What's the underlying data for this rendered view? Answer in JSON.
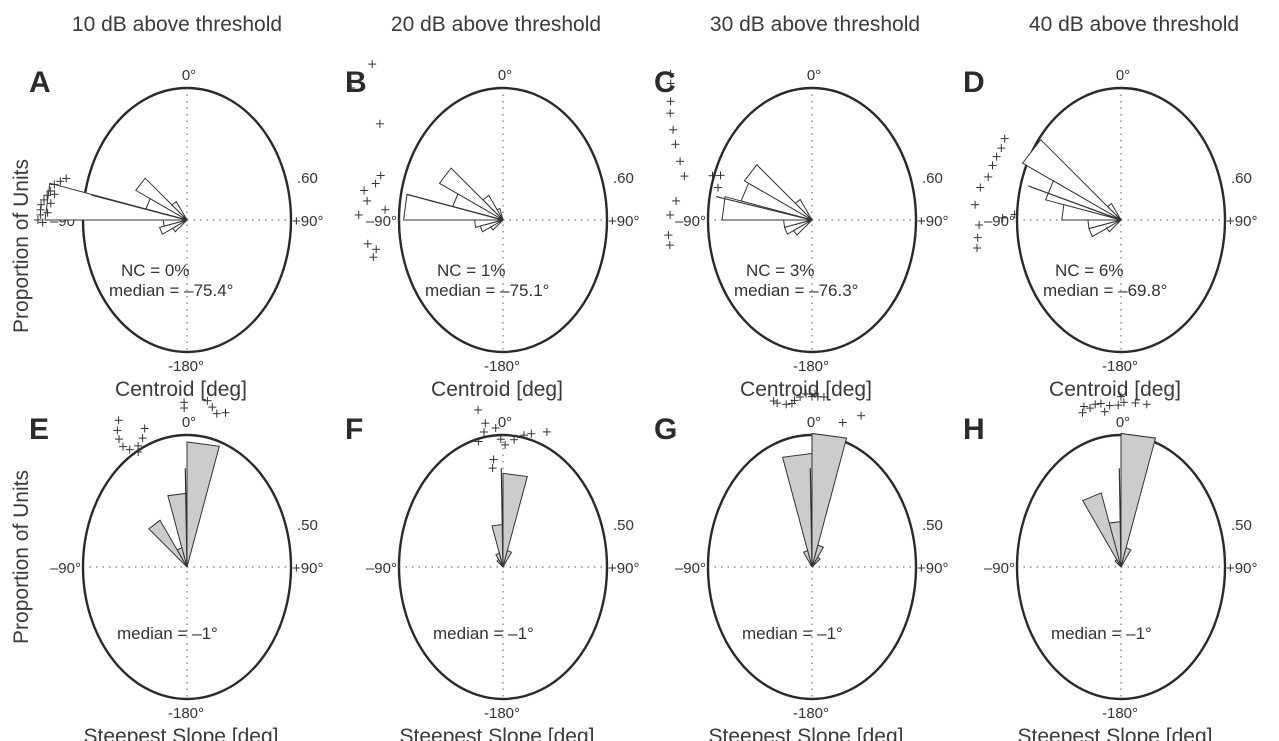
{
  "figure": {
    "column_titles": [
      "10 dB above threshold",
      "20 dB above threshold",
      "30 dB above threshold",
      "40 dB above threshold"
    ],
    "row_ylabel": "Proportion of Units",
    "angle_labels": {
      "top": "0°",
      "bottom": "-180°",
      "left": "–90°",
      "right": "+90°"
    }
  },
  "chart_data": [
    {
      "panel": "A",
      "type": "polar-histogram",
      "row": "centroid",
      "xlabel": "Centroid [deg]",
      "radius_max_label": ".60",
      "radius_max": 0.6,
      "nc_label": "NC = 0%",
      "median_label": "median = –75.4°",
      "median_deg": -75.4,
      "bin_width_deg": 15,
      "bar_fill": "#ffffff",
      "bins": [
        {
          "angle_deg": -37.5,
          "proportion": 0.09
        },
        {
          "angle_deg": -52.5,
          "proportion": 0.25
        },
        {
          "angle_deg": -67.5,
          "proportion": 0.18
        },
        {
          "angle_deg": -82.5,
          "proportion": 0.6
        },
        {
          "angle_deg": -97.5,
          "proportion": 0.1
        },
        {
          "angle_deg": -112.5,
          "proportion": 0.12
        },
        {
          "angle_deg": -127.5,
          "proportion": 0.07
        }
      ],
      "scatter": [
        {
          "angle_deg": -73,
          "proportion": 0.56
        },
        {
          "angle_deg": -71,
          "proportion": 0.54
        },
        {
          "angle_deg": -75,
          "proportion": 0.58
        },
        {
          "angle_deg": -78,
          "proportion": 0.59
        },
        {
          "angle_deg": -80,
          "proportion": 0.6
        },
        {
          "angle_deg": -82,
          "proportion": 0.61
        },
        {
          "angle_deg": -84,
          "proportion": 0.62
        },
        {
          "angle_deg": -86,
          "proportion": 0.62
        },
        {
          "angle_deg": -88,
          "proportion": 0.62
        },
        {
          "angle_deg": -90,
          "proportion": 0.63
        },
        {
          "angle_deg": -83,
          "proportion": 0.58
        },
        {
          "angle_deg": -87,
          "proportion": 0.59
        },
        {
          "angle_deg": -79,
          "proportion": 0.57
        },
        {
          "angle_deg": -91,
          "proportion": 0.61
        }
      ]
    },
    {
      "panel": "B",
      "type": "polar-histogram",
      "row": "centroid",
      "xlabel": "Centroid [deg]",
      "radius_max_label": ".60",
      "radius_max": 0.6,
      "nc_label": "NC = 1%",
      "median_label": "median = –75.1°",
      "median_deg": -75.1,
      "bin_width_deg": 15,
      "bar_fill": "#ffffff",
      "bins": [
        {
          "angle_deg": -22.5,
          "proportion": 0.05
        },
        {
          "angle_deg": -37.5,
          "proportion": 0.12
        },
        {
          "angle_deg": -52.5,
          "proportion": 0.31
        },
        {
          "angle_deg": -67.5,
          "proportion": 0.22
        },
        {
          "angle_deg": -82.5,
          "proportion": 0.42
        },
        {
          "angle_deg": -97.5,
          "proportion": 0.12
        },
        {
          "angle_deg": -112.5,
          "proportion": 0.1
        },
        {
          "angle_deg": -127.5,
          "proportion": 0.06
        }
      ],
      "scatter": [
        {
          "angle_deg": -52,
          "proportion": 0.66
        },
        {
          "angle_deg": -49,
          "proportion": 0.85
        },
        {
          "angle_deg": -40,
          "proportion": 0.86
        },
        {
          "angle_deg": -70,
          "proportion": 0.55
        },
        {
          "angle_deg": -74,
          "proportion": 0.56
        },
        {
          "angle_deg": -78,
          "proportion": 0.6
        },
        {
          "angle_deg": -82,
          "proportion": 0.58
        },
        {
          "angle_deg": -85,
          "proportion": 0.5
        },
        {
          "angle_deg": -88,
          "proportion": 0.61
        },
        {
          "angle_deg": -100,
          "proportion": 0.58
        },
        {
          "angle_deg": -103,
          "proportion": 0.55
        },
        {
          "angle_deg": -106,
          "proportion": 0.57
        }
      ]
    },
    {
      "panel": "C",
      "type": "polar-histogram",
      "row": "centroid",
      "xlabel": "Centroid [deg]",
      "radius_max_label": ".60",
      "radius_max": 0.6,
      "nc_label": "NC = 3%",
      "median_label": "median = –76.3°",
      "median_deg": -76.3,
      "bin_width_deg": 15,
      "bar_fill": "#ffffff",
      "bins": [
        {
          "angle_deg": -37.5,
          "proportion": 0.1
        },
        {
          "angle_deg": -52.5,
          "proportion": 0.33
        },
        {
          "angle_deg": -67.5,
          "proportion": 0.31
        },
        {
          "angle_deg": -82.5,
          "proportion": 0.38
        },
        {
          "angle_deg": -97.5,
          "proportion": 0.12
        },
        {
          "angle_deg": -112.5,
          "proportion": 0.12
        },
        {
          "angle_deg": -127.5,
          "proportion": 0.09
        }
      ],
      "scatter": [
        {
          "angle_deg": -44,
          "proportion": 0.86
        },
        {
          "angle_deg": -46,
          "proportion": 0.83
        },
        {
          "angle_deg": -50,
          "proportion": 0.78
        },
        {
          "angle_deg": -53,
          "proportion": 0.75
        },
        {
          "angle_deg": -57,
          "proportion": 0.7
        },
        {
          "angle_deg": -61,
          "proportion": 0.66
        },
        {
          "angle_deg": -66,
          "proportion": 0.61
        },
        {
          "angle_deg": -71,
          "proportion": 0.57
        },
        {
          "angle_deg": -64,
          "proportion": 0.43
        },
        {
          "angle_deg": -66,
          "proportion": 0.46
        },
        {
          "angle_deg": -71,
          "proportion": 0.42
        },
        {
          "angle_deg": -82,
          "proportion": 0.58
        },
        {
          "angle_deg": -88,
          "proportion": 0.6
        },
        {
          "angle_deg": -96,
          "proportion": 0.61
        },
        {
          "angle_deg": -100,
          "proportion": 0.61
        }
      ]
    },
    {
      "panel": "D",
      "type": "polar-histogram",
      "row": "centroid",
      "xlabel": "Centroid [deg]",
      "radius_max_label": ".60",
      "radius_max": 0.6,
      "nc_label": "NC = 6%",
      "median_label": "median = –69.8°",
      "median_deg": -69.8,
      "bin_width_deg": 15,
      "bar_fill": "#ffffff",
      "bins": [
        {
          "angle_deg": -37.5,
          "proportion": 0.08
        },
        {
          "angle_deg": -52.5,
          "proportion": 0.48
        },
        {
          "angle_deg": -67.5,
          "proportion": 0.33
        },
        {
          "angle_deg": -82.5,
          "proportion": 0.25
        },
        {
          "angle_deg": -97.5,
          "proportion": 0.14
        },
        {
          "angle_deg": -112.5,
          "proportion": 0.14
        },
        {
          "angle_deg": -127.5,
          "proportion": 0.07
        }
      ],
      "scatter": [
        {
          "angle_deg": -55,
          "proportion": 0.6
        },
        {
          "angle_deg": -59,
          "proportion": 0.59
        },
        {
          "angle_deg": -63,
          "proportion": 0.59
        },
        {
          "angle_deg": -67,
          "proportion": 0.59
        },
        {
          "angle_deg": -72,
          "proportion": 0.59
        },
        {
          "angle_deg": -77,
          "proportion": 0.61
        },
        {
          "angle_deg": -84,
          "proportion": 0.62
        },
        {
          "angle_deg": -92,
          "proportion": 0.6
        },
        {
          "angle_deg": -97,
          "proportion": 0.61
        },
        {
          "angle_deg": -101,
          "proportion": 0.62
        },
        {
          "angle_deg": -87,
          "proportion": 0.45
        },
        {
          "angle_deg": -89,
          "proportion": 0.5
        }
      ]
    },
    {
      "panel": "E",
      "type": "polar-histogram",
      "row": "steepest-slope",
      "xlabel": "Steepest Slope [deg]",
      "radius_max_label": ".50",
      "radius_max": 0.5,
      "median_label": "median = –1°",
      "median_deg": -1,
      "bin_width_deg": 15,
      "bar_fill": "#cccccc",
      "bins": [
        {
          "angle_deg": 7.5,
          "proportion": 0.44
        },
        {
          "angle_deg": -7.5,
          "proportion": 0.26
        },
        {
          "angle_deg": -22.5,
          "proportion": 0.07
        },
        {
          "angle_deg": -37.5,
          "proportion": 0.19
        }
      ],
      "scatter": [
        {
          "angle_deg": 7,
          "proportion": 0.59
        },
        {
          "angle_deg": 9,
          "proportion": 0.57
        },
        {
          "angle_deg": 11,
          "proportion": 0.55
        },
        {
          "angle_deg": 14,
          "proportion": 0.56
        },
        {
          "angle_deg": -1,
          "proportion": 0.56
        },
        {
          "angle_deg": -1,
          "proportion": 0.58
        },
        {
          "angle_deg": -17,
          "proportion": 0.51
        },
        {
          "angle_deg": -19,
          "proportion": 0.48
        },
        {
          "angle_deg": -22,
          "proportion": 0.46
        },
        {
          "angle_deg": -23,
          "proportion": 0.44
        },
        {
          "angle_deg": -26,
          "proportion": 0.46
        },
        {
          "angle_deg": -28,
          "proportion": 0.48
        },
        {
          "angle_deg": -28,
          "proportion": 0.51
        },
        {
          "angle_deg": -27,
          "proportion": 0.54
        },
        {
          "angle_deg": -25,
          "proportion": 0.57
        }
      ]
    },
    {
      "panel": "F",
      "type": "polar-histogram",
      "row": "steepest-slope",
      "xlabel": "Steepest Slope [deg]",
      "radius_max_label": ".50",
      "radius_max": 0.5,
      "median_label": "median = –1°",
      "median_deg": -1,
      "bin_width_deg": 15,
      "bar_fill": "#cccccc",
      "bins": [
        {
          "angle_deg": 7.5,
          "proportion": 0.33
        },
        {
          "angle_deg": -7.5,
          "proportion": 0.15
        },
        {
          "angle_deg": 22.5,
          "proportion": 0.06
        },
        {
          "angle_deg": -22.5,
          "proportion": 0.05
        },
        {
          "angle_deg": -37.5,
          "proportion": 0.03
        }
      ],
      "scatter": [
        {
          "angle_deg": -9,
          "proportion": 0.56
        },
        {
          "angle_deg": -7,
          "proportion": 0.51
        },
        {
          "angle_deg": -8,
          "proportion": 0.48
        },
        {
          "angle_deg": -11,
          "proportion": 0.45
        },
        {
          "angle_deg": -3,
          "proportion": 0.49
        },
        {
          "angle_deg": -1,
          "proportion": 0.45
        },
        {
          "angle_deg": 1,
          "proportion": 0.43
        },
        {
          "angle_deg": 5,
          "proportion": 0.45
        },
        {
          "angle_deg": 9,
          "proportion": 0.47
        },
        {
          "angle_deg": 12,
          "proportion": 0.48
        },
        {
          "angle_deg": 18,
          "proportion": 0.5
        },
        {
          "angle_deg": -5,
          "proportion": 0.38
        },
        {
          "angle_deg": -6,
          "proportion": 0.35
        }
      ]
    },
    {
      "panel": "G",
      "type": "polar-histogram",
      "row": "steepest-slope",
      "xlabel": "Steepest Slope [deg]",
      "radius_max_label": ".50",
      "radius_max": 0.5,
      "median_label": "median = –1°",
      "median_deg": -1,
      "bin_width_deg": 15,
      "bar_fill": "#cccccc",
      "bins": [
        {
          "angle_deg": 7.5,
          "proportion": 0.47
        },
        {
          "angle_deg": -7.5,
          "proportion": 0.4
        },
        {
          "angle_deg": -22.5,
          "proportion": 0.06
        },
        {
          "angle_deg": 22.5,
          "proportion": 0.08
        },
        {
          "angle_deg": 37.5,
          "proportion": 0.04
        }
      ],
      "scatter": [
        {
          "angle_deg": -9,
          "proportion": 0.58
        },
        {
          "angle_deg": -7,
          "proportion": 0.58
        },
        {
          "angle_deg": -6,
          "proportion": 0.59
        },
        {
          "angle_deg": -4,
          "proportion": 0.6
        },
        {
          "angle_deg": -2,
          "proportion": 0.61
        },
        {
          "angle_deg": 0,
          "proportion": 0.6
        },
        {
          "angle_deg": 1,
          "proportion": 0.61
        },
        {
          "angle_deg": 2,
          "proportion": 0.6
        },
        {
          "angle_deg": 4,
          "proportion": 0.6
        },
        {
          "angle_deg": -12,
          "proportion": 0.59
        },
        {
          "angle_deg": -13,
          "proportion": 0.6
        },
        {
          "angle_deg": 12,
          "proportion": 0.52
        },
        {
          "angle_deg": 18,
          "proportion": 0.56
        }
      ]
    },
    {
      "panel": "H",
      "type": "polar-histogram",
      "row": "steepest-slope",
      "xlabel": "Steepest Slope [deg]",
      "radius_max_label": ".50",
      "radius_max": 0.5,
      "median_label": "median = –1°",
      "median_deg": -1,
      "bin_width_deg": 15,
      "bar_fill": "#cccccc",
      "bins": [
        {
          "angle_deg": 7.5,
          "proportion": 0.47
        },
        {
          "angle_deg": -7.5,
          "proportion": 0.16
        },
        {
          "angle_deg": -22.5,
          "proportion": 0.27
        },
        {
          "angle_deg": 22.5,
          "proportion": 0.07
        },
        {
          "angle_deg": -37.5,
          "proportion": 0.03
        }
      ],
      "scatter": [
        {
          "angle_deg": -9,
          "proportion": 0.58
        },
        {
          "angle_deg": -11,
          "proportion": 0.57
        },
        {
          "angle_deg": -13,
          "proportion": 0.58
        },
        {
          "angle_deg": -14,
          "proportion": 0.56
        },
        {
          "angle_deg": -6,
          "proportion": 0.55
        },
        {
          "angle_deg": -4,
          "proportion": 0.57
        },
        {
          "angle_deg": -1,
          "proportion": 0.57
        },
        {
          "angle_deg": 0,
          "proportion": 0.6
        },
        {
          "angle_deg": 1,
          "proportion": 0.58
        },
        {
          "angle_deg": 5,
          "proportion": 0.58
        },
        {
          "angle_deg": 9,
          "proportion": 0.58
        },
        {
          "angle_deg": -7,
          "proportion": 0.58
        }
      ]
    }
  ]
}
